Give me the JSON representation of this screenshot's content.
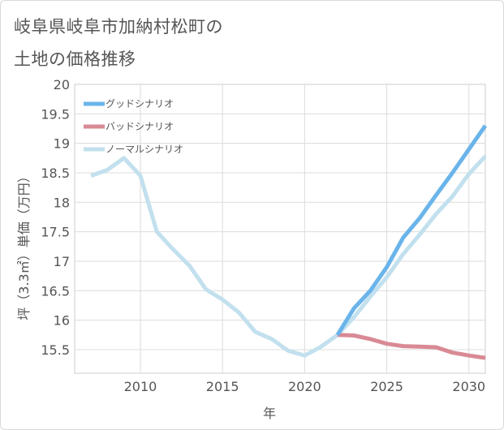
{
  "title_lines": [
    "岐阜県岐阜市加納村松町の",
    "土地の価格推移"
  ],
  "chart_data": {
    "type": "line",
    "xlabel": "年",
    "ylabel": "坪（3.3㎡）単価（万円）",
    "xlim": [
      2006,
      2031
    ],
    "ylim": [
      15.1,
      20
    ],
    "xticks": [
      2010,
      2015,
      2020,
      2025,
      2030
    ],
    "yticks": [
      15.5,
      16,
      16.5,
      17,
      17.5,
      18,
      18.5,
      19,
      19.5,
      20
    ],
    "ytick_labels": [
      "15.5",
      "16",
      "16.5",
      "17",
      "17.5",
      "18",
      "18.5",
      "19",
      "19.5",
      "20"
    ],
    "grid": true,
    "legend_position": "top-left",
    "series": [
      {
        "name": "グッドシナリオ",
        "color": "#6ab4ea",
        "x": [
          2022,
          2023,
          2024,
          2025,
          2026,
          2027,
          2028,
          2029,
          2030,
          2031
        ],
        "y": [
          15.75,
          16.2,
          16.5,
          16.9,
          17.4,
          17.73,
          18.12,
          18.5,
          18.9,
          19.3
        ]
      },
      {
        "name": "バッドシナリオ",
        "color": "#d98a94",
        "x": [
          2022,
          2023,
          2024,
          2025,
          2026,
          2027,
          2028,
          2029,
          2030,
          2031
        ],
        "y": [
          15.75,
          15.74,
          15.68,
          15.6,
          15.56,
          15.55,
          15.54,
          15.45,
          15.4,
          15.36
        ]
      },
      {
        "name": "ノーマルシナリオ",
        "color": "#c2e0ee",
        "x": [
          2007,
          2008,
          2009,
          2010,
          2011,
          2012,
          2013,
          2014,
          2015,
          2016,
          2017,
          2018,
          2019,
          2020,
          2021,
          2022,
          2023,
          2024,
          2025,
          2026,
          2027,
          2028,
          2029,
          2030,
          2031
        ],
        "y": [
          18.45,
          18.55,
          18.75,
          18.45,
          17.5,
          17.2,
          16.92,
          16.52,
          16.35,
          16.13,
          15.8,
          15.68,
          15.48,
          15.4,
          15.55,
          15.75,
          16.05,
          16.4,
          16.73,
          17.12,
          17.45,
          17.8,
          18.1,
          18.48,
          18.78
        ]
      }
    ]
  }
}
